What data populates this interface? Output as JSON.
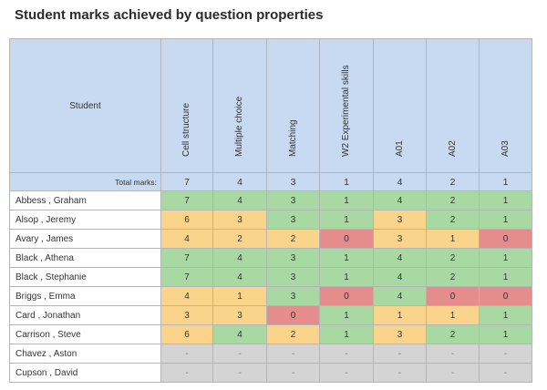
{
  "title": "Student marks achieved by question properties",
  "student_header": "Student",
  "columns": [
    "Cell structure",
    "Multiple choice",
    "Matching",
    "W2 Experimental skills",
    "A01",
    "A02",
    "A03"
  ],
  "total_label": "Total marks:",
  "totals": [
    "7",
    "4",
    "3",
    "1",
    "4",
    "2",
    "1"
  ],
  "rows": [
    {
      "name": "Abbess , Graham",
      "cells": [
        {
          "v": "7",
          "c": "g"
        },
        {
          "v": "4",
          "c": "g"
        },
        {
          "v": "3",
          "c": "g"
        },
        {
          "v": "1",
          "c": "g"
        },
        {
          "v": "4",
          "c": "g"
        },
        {
          "v": "2",
          "c": "g"
        },
        {
          "v": "1",
          "c": "g"
        }
      ]
    },
    {
      "name": "Alsop , Jeremy",
      "cells": [
        {
          "v": "6",
          "c": "y"
        },
        {
          "v": "3",
          "c": "y"
        },
        {
          "v": "3",
          "c": "g"
        },
        {
          "v": "1",
          "c": "g"
        },
        {
          "v": "3",
          "c": "y"
        },
        {
          "v": "2",
          "c": "g"
        },
        {
          "v": "1",
          "c": "g"
        }
      ]
    },
    {
      "name": "Avary , James",
      "cells": [
        {
          "v": "4",
          "c": "y"
        },
        {
          "v": "2",
          "c": "y"
        },
        {
          "v": "2",
          "c": "y"
        },
        {
          "v": "0",
          "c": "r"
        },
        {
          "v": "3",
          "c": "y"
        },
        {
          "v": "1",
          "c": "y"
        },
        {
          "v": "0",
          "c": "r"
        }
      ]
    },
    {
      "name": "Black , Athena",
      "cells": [
        {
          "v": "7",
          "c": "g"
        },
        {
          "v": "4",
          "c": "g"
        },
        {
          "v": "3",
          "c": "g"
        },
        {
          "v": "1",
          "c": "g"
        },
        {
          "v": "4",
          "c": "g"
        },
        {
          "v": "2",
          "c": "g"
        },
        {
          "v": "1",
          "c": "g"
        }
      ]
    },
    {
      "name": "Black , Stephanie",
      "cells": [
        {
          "v": "7",
          "c": "g"
        },
        {
          "v": "4",
          "c": "g"
        },
        {
          "v": "3",
          "c": "g"
        },
        {
          "v": "1",
          "c": "g"
        },
        {
          "v": "4",
          "c": "g"
        },
        {
          "v": "2",
          "c": "g"
        },
        {
          "v": "1",
          "c": "g"
        }
      ]
    },
    {
      "name": "Briggs , Emma",
      "cells": [
        {
          "v": "4",
          "c": "y"
        },
        {
          "v": "1",
          "c": "y"
        },
        {
          "v": "3",
          "c": "g"
        },
        {
          "v": "0",
          "c": "r"
        },
        {
          "v": "4",
          "c": "g"
        },
        {
          "v": "0",
          "c": "r"
        },
        {
          "v": "0",
          "c": "r"
        }
      ]
    },
    {
      "name": "Card , Jonathan",
      "cells": [
        {
          "v": "3",
          "c": "y"
        },
        {
          "v": "3",
          "c": "y"
        },
        {
          "v": "0",
          "c": "r"
        },
        {
          "v": "1",
          "c": "g"
        },
        {
          "v": "1",
          "c": "y"
        },
        {
          "v": "1",
          "c": "y"
        },
        {
          "v": "1",
          "c": "g"
        }
      ]
    },
    {
      "name": "Carrison , Steve",
      "cells": [
        {
          "v": "6",
          "c": "y"
        },
        {
          "v": "4",
          "c": "g"
        },
        {
          "v": "2",
          "c": "y"
        },
        {
          "v": "1",
          "c": "g"
        },
        {
          "v": "3",
          "c": "y"
        },
        {
          "v": "2",
          "c": "g"
        },
        {
          "v": "1",
          "c": "g"
        }
      ]
    },
    {
      "name": "Chavez , Aston",
      "cells": [
        {
          "v": "-",
          "c": "n"
        },
        {
          "v": "-",
          "c": "n"
        },
        {
          "v": "-",
          "c": "n"
        },
        {
          "v": "-",
          "c": "n"
        },
        {
          "v": "-",
          "c": "n"
        },
        {
          "v": "-",
          "c": "n"
        },
        {
          "v": "-",
          "c": "n"
        }
      ]
    },
    {
      "name": "Cupson , David",
      "cells": [
        {
          "v": "-",
          "c": "n"
        },
        {
          "v": "-",
          "c": "n"
        },
        {
          "v": "-",
          "c": "n"
        },
        {
          "v": "-",
          "c": "n"
        },
        {
          "v": "-",
          "c": "n"
        },
        {
          "v": "-",
          "c": "n"
        },
        {
          "v": "-",
          "c": "n"
        }
      ]
    }
  ],
  "colors": {
    "full": "#a8d9a3",
    "partial": "#fbd48b",
    "zero": "#e58c8c",
    "none": "#d4d4d4",
    "header": "#c8daf1"
  }
}
